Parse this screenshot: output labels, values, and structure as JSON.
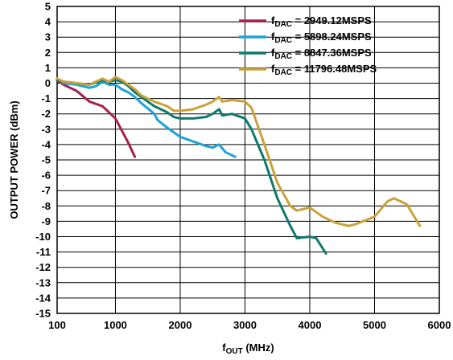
{
  "chart_data": {
    "type": "line",
    "xlabel": {
      "main": "f",
      "sub": "OUT",
      "unit": " (MHz)"
    },
    "ylabel": "OUTPUT POWER (dBm)",
    "xlim": [
      100,
      6000
    ],
    "ylim": [
      -15,
      5
    ],
    "x_ticks": [
      100,
      1000,
      2000,
      3000,
      4000,
      5000,
      6000
    ],
    "y_ticks": [
      5,
      4,
      3,
      2,
      1,
      0,
      -1,
      -2,
      -3,
      -4,
      -5,
      -6,
      -7,
      -8,
      -9,
      -10,
      -11,
      -12,
      -13,
      -14,
      -15
    ],
    "grid": true,
    "legend_position": "top-right",
    "series": [
      {
        "name": {
          "main": "f",
          "sub": "DAC",
          "rest": " = 2949.12MSPS"
        },
        "color": "#a3224f",
        "points": [
          [
            100,
            0.2
          ],
          [
            200,
            -0.1
          ],
          [
            400,
            -0.5
          ],
          [
            600,
            -1.2
          ],
          [
            800,
            -1.5
          ],
          [
            1000,
            -2.3
          ],
          [
            1100,
            -3.1
          ],
          [
            1200,
            -3.9
          ],
          [
            1300,
            -4.8
          ]
        ]
      },
      {
        "name": {
          "main": "f",
          "sub": "DAC",
          "rest": " = 5898.24MSPS"
        },
        "color": "#1ea3d9",
        "points": [
          [
            100,
            0.3
          ],
          [
            200,
            0.0
          ],
          [
            400,
            -0.1
          ],
          [
            600,
            -0.3
          ],
          [
            700,
            -0.2
          ],
          [
            800,
            0.1
          ],
          [
            900,
            -0.1
          ],
          [
            1000,
            -0.1
          ],
          [
            1100,
            -0.4
          ],
          [
            1200,
            -0.6
          ],
          [
            1300,
            -0.9
          ],
          [
            1400,
            -1.3
          ],
          [
            1600,
            -2.0
          ],
          [
            1650,
            -2.4
          ],
          [
            1800,
            -2.9
          ],
          [
            2000,
            -3.5
          ],
          [
            2200,
            -3.8
          ],
          [
            2400,
            -4.1
          ],
          [
            2500,
            -4.2
          ],
          [
            2600,
            -4.0
          ],
          [
            2700,
            -4.5
          ],
          [
            2850,
            -4.8
          ]
        ]
      },
      {
        "name": {
          "main": "f",
          "sub": "DAC",
          "rest": " = 8847.36MSPS"
        },
        "color": "#0e7a6b",
        "points": [
          [
            100,
            0.2
          ],
          [
            200,
            0.1
          ],
          [
            400,
            0.0
          ],
          [
            600,
            -0.1
          ],
          [
            800,
            0.2
          ],
          [
            900,
            0.1
          ],
          [
            1000,
            0.2
          ],
          [
            1100,
            0.1
          ],
          [
            1200,
            -0.2
          ],
          [
            1300,
            -0.6
          ],
          [
            1400,
            -0.9
          ],
          [
            1600,
            -1.5
          ],
          [
            1800,
            -1.9
          ],
          [
            1900,
            -2.2
          ],
          [
            2000,
            -2.3
          ],
          [
            2200,
            -2.3
          ],
          [
            2400,
            -2.2
          ],
          [
            2500,
            -2.0
          ],
          [
            2600,
            -1.7
          ],
          [
            2650,
            -2.1
          ],
          [
            2800,
            -2.0
          ],
          [
            3000,
            -2.3
          ],
          [
            3100,
            -3.0
          ],
          [
            3300,
            -5.0
          ],
          [
            3500,
            -7.5
          ],
          [
            3700,
            -9.3
          ],
          [
            3800,
            -10.1
          ],
          [
            4000,
            -10.0
          ],
          [
            4100,
            -10.1
          ],
          [
            4250,
            -11.1
          ]
        ]
      },
      {
        "name": {
          "main": "f",
          "sub": "DAC",
          "rest": " = 11796.48MSPS"
        },
        "color": "#c9a23a",
        "points": [
          [
            100,
            0.3
          ],
          [
            200,
            0.1
          ],
          [
            400,
            0.0
          ],
          [
            600,
            -0.1
          ],
          [
            800,
            0.3
          ],
          [
            900,
            0.1
          ],
          [
            1000,
            0.4
          ],
          [
            1100,
            0.2
          ],
          [
            1200,
            -0.1
          ],
          [
            1300,
            -0.4
          ],
          [
            1400,
            -0.8
          ],
          [
            1600,
            -1.2
          ],
          [
            1800,
            -1.5
          ],
          [
            1900,
            -1.8
          ],
          [
            2000,
            -1.8
          ],
          [
            2200,
            -1.7
          ],
          [
            2400,
            -1.4
          ],
          [
            2500,
            -1.2
          ],
          [
            2600,
            -0.9
          ],
          [
            2650,
            -1.2
          ],
          [
            2800,
            -1.1
          ],
          [
            3000,
            -1.2
          ],
          [
            3100,
            -1.6
          ],
          [
            3300,
            -4.0
          ],
          [
            3500,
            -6.5
          ],
          [
            3700,
            -8.0
          ],
          [
            3800,
            -8.3
          ],
          [
            4000,
            -8.1
          ],
          [
            4200,
            -8.7
          ],
          [
            4400,
            -9.1
          ],
          [
            4600,
            -9.3
          ],
          [
            4700,
            -9.2
          ],
          [
            5000,
            -8.7
          ],
          [
            5200,
            -7.7
          ],
          [
            5300,
            -7.5
          ],
          [
            5500,
            -7.9
          ],
          [
            5700,
            -9.3
          ]
        ]
      }
    ]
  }
}
